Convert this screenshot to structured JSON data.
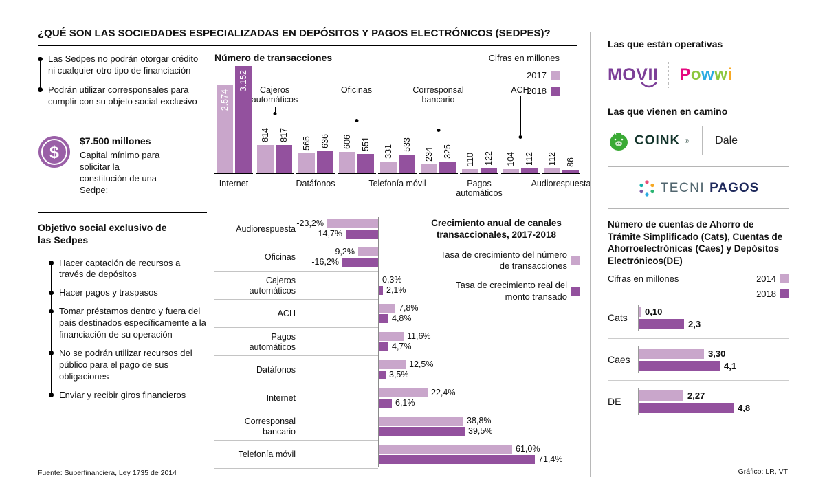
{
  "title": "¿QUÉ SON LAS SOCIEDADES ESPECIALIZADAS EN DEPÓSITOS Y PAGOS ELECTRÓNICOS (SEDPES)?",
  "colors": {
    "light": "#C9A6CB",
    "dark": "#93519E",
    "movii_purple": "#7D3F98",
    "coink_green": "#3AAA35"
  },
  "left": {
    "intro_bullets": [
      "Las Sedpes no podrán otorgar crédito ni cualquier otro tipo de financiación",
      "Podrán utilizar corresponsales para cumplir con su objeto social exclusivo"
    ],
    "capital": {
      "amount": "$7.500 millones",
      "desc": "Capital mínimo para solicitar la constitución de una Sedpe:"
    },
    "objective_heading": "Objetivo social exclusivo de las Sedpes",
    "objective_bullets": [
      "Hacer captación de recursos a través de depósitos",
      "Hacer pagos y traspasos",
      "Tomar préstamos dentro y fuera del país destinados específicamente a la financiación de su operación",
      "No se podrán utilizar recursos del público para el pago de sus obligaciones",
      "Enviar y recibir giros financieros"
    ],
    "source": "Fuente: Superfinanciera, Ley 1735 de 2014"
  },
  "chart_data": [
    {
      "type": "bar",
      "title": "Número de transacciones",
      "units": "Cifras en millones",
      "legend": [
        "2017",
        "2018"
      ],
      "categories": [
        "Internet",
        "Cajeros automáticos",
        "Datáfonos",
        "Oficinas",
        "Telefonía móvil",
        "Corresponsal bancario",
        "Pagos automáticos",
        "ACH",
        "Audiorespuesta"
      ],
      "series": [
        {
          "name": "2017",
          "values": [
            2574,
            814,
            565,
            606,
            331,
            234,
            110,
            104,
            112
          ]
        },
        {
          "name": "2018",
          "values": [
            3152,
            817,
            636,
            551,
            533,
            325,
            122,
            112,
            86
          ]
        }
      ],
      "display": [
        [
          "2.574",
          "3.152"
        ],
        [
          "814",
          "817"
        ],
        [
          "565",
          "636"
        ],
        [
          "606",
          "551"
        ],
        [
          "331",
          "533"
        ],
        [
          "234",
          "325"
        ],
        [
          "110",
          "122"
        ],
        [
          "104",
          "112"
        ],
        [
          "112",
          "86"
        ]
      ],
      "label_position": [
        "below",
        "above",
        "below",
        "above",
        "below",
        "above",
        "below",
        "above",
        "below"
      ],
      "inside_values": [
        true,
        false,
        false,
        false,
        false,
        false,
        false,
        false,
        false
      ]
    },
    {
      "type": "bar-horizontal",
      "title": "Crecimiento anual de canales transaccionales, 2017-2018",
      "legend": [
        "Tasa de crecimiento del número de transacciones",
        "Tasa de crecimiento real del monto transado"
      ],
      "categories": [
        "Audiorespuesta",
        "Oficinas",
        "Cajeros automáticos",
        "ACH",
        "Pagos automáticos",
        "Datáfonos",
        "Internet",
        "Corresponsal bancario",
        "Telefonía móvil"
      ],
      "series": [
        {
          "name": "Tasa de crecimiento del número de transacciones",
          "values": [
            -23.2,
            -9.2,
            0.3,
            7.8,
            11.6,
            12.5,
            22.4,
            38.8,
            61.0
          ]
        },
        {
          "name": "Tasa de crecimiento real del monto transado",
          "values": [
            -14.7,
            -16.2,
            2.1,
            4.8,
            4.7,
            3.5,
            6.1,
            39.5,
            71.4
          ]
        }
      ],
      "display": [
        [
          "-23,2%",
          "-14,7%"
        ],
        [
          "-9,2%",
          "-16,2%"
        ],
        [
          "0,3%",
          "2,1%"
        ],
        [
          "7,8%",
          "4,8%"
        ],
        [
          "11,6%",
          "4,7%"
        ],
        [
          "12,5%",
          "3,5%"
        ],
        [
          "22,4%",
          "6,1%"
        ],
        [
          "38,8%",
          "39,5%"
        ],
        [
          "61,0%",
          "71,4%"
        ]
      ]
    },
    {
      "type": "bar-horizontal",
      "title": "Número de cuentas de Ahorro de Trámite Simplificado (Cats), Cuentas de Ahorroelectrónicas (Caes) y Depósitos Electrónicos(DE)",
      "units": "Cifras en millones",
      "legend": [
        "2014",
        "2018"
      ],
      "categories": [
        "Cats",
        "Caes",
        "DE"
      ],
      "series": [
        {
          "name": "2014",
          "values": [
            0.1,
            3.3,
            2.27
          ]
        },
        {
          "name": "2018",
          "values": [
            2.3,
            4.1,
            4.8
          ]
        }
      ],
      "display": [
        [
          "0,10",
          "2,3"
        ],
        [
          "3,30",
          "4,1"
        ],
        [
          "2,27",
          "4,8"
        ]
      ]
    }
  ],
  "right": {
    "operatives_heading": "Las que están operativas",
    "coming_heading": "Las que vienen en camino",
    "logos": {
      "movii": "MOVII",
      "powwi_letters": [
        {
          "ch": "P",
          "color": "#E5097F"
        },
        {
          "ch": "o",
          "color": "#8CC63E"
        },
        {
          "ch": "w",
          "color": "#29AAE1"
        },
        {
          "ch": "w",
          "color": "#8CC63E"
        },
        {
          "ch": "i",
          "color": "#F7A823"
        }
      ],
      "coink": "COINK",
      "coink_reg": "®",
      "dale": "Dale",
      "tecnipagos_thin": "TECNI",
      "tecnipagos_bold": "PAGOS"
    },
    "credit": "Gráfico: LR, VT"
  }
}
